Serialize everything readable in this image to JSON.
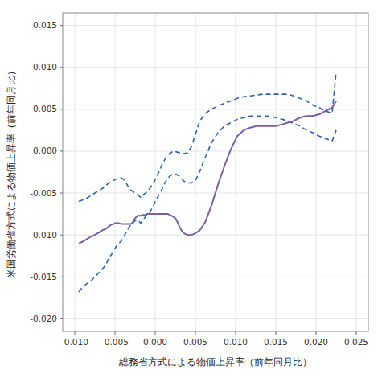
{
  "chart_data": {
    "type": "line",
    "xlabel": "総務省方式による物価上昇率（前年同月比）",
    "ylabel": "米国労働省方式による物価上昇率（前年同月比）",
    "xlim": [
      -0.0115,
      0.0265
    ],
    "ylim": [
      -0.0215,
      0.0165
    ],
    "xticks": [
      {
        "value": -0.01,
        "label": "-0.010"
      },
      -0.005,
      {
        "value": 0.0,
        "label": "0.000"
      },
      0.005,
      {
        "value": 0.01,
        "label": "0.010"
      },
      0.015,
      {
        "value": 0.02,
        "label": "0.020"
      },
      0.025
    ],
    "yticks": [
      {
        "value": -0.02,
        "label": "-0.020"
      },
      -0.015,
      {
        "value": -0.01,
        "label": "-0.010"
      },
      -0.005,
      {
        "value": 0.0,
        "label": "0.000"
      },
      0.005,
      {
        "value": 0.01,
        "label": "0.010"
      },
      0.015
    ],
    "grid": true,
    "series": [
      {
        "color": "#2b62b8",
        "line_style": "dashed",
        "x": [
          -0.0095,
          -0.009,
          -0.0085,
          -0.008,
          -0.0075,
          -0.007,
          -0.0065,
          -0.006,
          -0.0058,
          -0.0055,
          -0.0052,
          -0.005,
          -0.0048,
          -0.0045,
          -0.0042,
          -0.004,
          -0.0038,
          -0.0035,
          -0.0032,
          -0.0028,
          -0.0025,
          -0.0022,
          -0.0018,
          -0.0015,
          -0.0012,
          -0.0008,
          -0.0005,
          -0.0002,
          0.0,
          0.0003,
          0.0006,
          0.0009,
          0.0012,
          0.0015,
          0.0018,
          0.0021,
          0.0024,
          0.0027,
          0.003,
          0.0033,
          0.0036,
          0.004,
          0.0045,
          0.005,
          0.0055,
          0.0062,
          0.007,
          0.0078,
          0.0086,
          0.0094,
          0.0102,
          0.011,
          0.0118,
          0.0126,
          0.0134,
          0.0142,
          0.015,
          0.0158,
          0.0165,
          0.0172,
          0.018,
          0.0188,
          0.0196,
          0.0204,
          0.0212,
          0.022,
          0.0225
        ],
        "values": [
          -0.006,
          -0.0058,
          -0.0056,
          -0.0053,
          -0.005,
          -0.0047,
          -0.0044,
          -0.004,
          -0.0038,
          -0.0036,
          -0.0035,
          -0.0034,
          -0.0033,
          -0.0032,
          -0.0032,
          -0.0033,
          -0.0035,
          -0.004,
          -0.0045,
          -0.0048,
          -0.005,
          -0.0052,
          -0.0055,
          -0.0052,
          -0.005,
          -0.0046,
          -0.0042,
          -0.0038,
          -0.0034,
          -0.0028,
          -0.0022,
          -0.0015,
          -0.001,
          -0.0006,
          -0.0003,
          -0.0001,
          0.0,
          -0.0001,
          -0.0002,
          -0.0003,
          -0.0003,
          -0.0002,
          0.0005,
          0.002,
          0.0035,
          0.0045,
          0.005,
          0.0054,
          0.0057,
          0.006,
          0.0063,
          0.0065,
          0.0066,
          0.0067,
          0.0068,
          0.0068,
          0.0068,
          0.0068,
          0.0068,
          0.0066,
          0.0063,
          0.006,
          0.0055,
          0.0052,
          0.0048,
          0.0045,
          0.0095
        ]
      },
      {
        "color": "#2b62b8",
        "line_style": "dashed",
        "x": [
          -0.0095,
          -0.009,
          -0.0085,
          -0.008,
          -0.0075,
          -0.007,
          -0.0065,
          -0.006,
          -0.0058,
          -0.0055,
          -0.0052,
          -0.005,
          -0.0048,
          -0.0045,
          -0.0042,
          -0.004,
          -0.0038,
          -0.0035,
          -0.0032,
          -0.0028,
          -0.0025,
          -0.0022,
          -0.0018,
          -0.0015,
          -0.0012,
          -0.0008,
          -0.0005,
          -0.0002,
          0.0,
          0.0003,
          0.0006,
          0.0009,
          0.0012,
          0.0015,
          0.0018,
          0.0021,
          0.0024,
          0.0027,
          0.003,
          0.0033,
          0.0036,
          0.004,
          0.0045,
          0.005,
          0.0055,
          0.0062,
          0.007,
          0.0078,
          0.0086,
          0.0094,
          0.0102,
          0.011,
          0.0118,
          0.0126,
          0.0134,
          0.0142,
          0.015,
          0.0158,
          0.0165,
          0.0172,
          0.018,
          0.0188,
          0.0196,
          0.0204,
          0.0212,
          0.022,
          0.0225
        ],
        "values": [
          -0.0168,
          -0.0162,
          -0.0158,
          -0.0155,
          -0.015,
          -0.0145,
          -0.014,
          -0.0133,
          -0.0128,
          -0.0124,
          -0.012,
          -0.0116,
          -0.0113,
          -0.011,
          -0.0107,
          -0.0104,
          -0.01,
          -0.0095,
          -0.009,
          -0.0086,
          -0.0083,
          -0.0082,
          -0.0086,
          -0.0082,
          -0.0078,
          -0.0074,
          -0.007,
          -0.0065,
          -0.006,
          -0.0055,
          -0.005,
          -0.0044,
          -0.0038,
          -0.0033,
          -0.003,
          -0.0028,
          -0.0027,
          -0.0028,
          -0.003,
          -0.0033,
          -0.0036,
          -0.0038,
          -0.0038,
          -0.0035,
          -0.0025,
          -0.0008,
          0.001,
          0.0022,
          0.003,
          0.0034,
          0.0038,
          0.004,
          0.0042,
          0.0042,
          0.0042,
          0.0042,
          0.004,
          0.0038,
          0.0036,
          0.0033,
          0.003,
          0.0025,
          0.0022,
          0.0018,
          0.0015,
          0.0012,
          0.0025
        ]
      },
      {
        "color": "#7b5ea7",
        "line_style": "solid",
        "x": [
          -0.0095,
          -0.009,
          -0.0085,
          -0.008,
          -0.0075,
          -0.007,
          -0.0065,
          -0.006,
          -0.0058,
          -0.0055,
          -0.0052,
          -0.005,
          -0.0048,
          -0.0045,
          -0.0042,
          -0.004,
          -0.0038,
          -0.0036,
          -0.0033,
          -0.003,
          -0.0028,
          -0.0025,
          -0.0022,
          -0.002,
          -0.0018,
          -0.0015,
          -0.0012,
          -0.001,
          -0.0008,
          -0.0005,
          -0.0003,
          0.0,
          0.0002,
          0.0005,
          0.0008,
          0.001,
          0.0013,
          0.0016,
          0.0018,
          0.002,
          0.0022,
          0.0025,
          0.0028,
          0.003,
          0.0033,
          0.0036,
          0.004,
          0.0044,
          0.0048,
          0.0055,
          0.0062,
          0.007,
          0.0078,
          0.0086,
          0.0094,
          0.0102,
          0.011,
          0.0118,
          0.0126,
          0.0134,
          0.0142,
          0.015,
          0.0158,
          0.0165,
          0.0172,
          0.018,
          0.0188,
          0.0196,
          0.0204,
          0.0212,
          0.022,
          0.0225
        ],
        "values": [
          -0.011,
          -0.0108,
          -0.0105,
          -0.0102,
          -0.01,
          -0.0097,
          -0.0094,
          -0.0092,
          -0.009,
          -0.0088,
          -0.0087,
          -0.0086,
          -0.0086,
          -0.0086,
          -0.0087,
          -0.0087,
          -0.0087,
          -0.0087,
          -0.0087,
          -0.0087,
          -0.0085,
          -0.008,
          -0.0077,
          -0.0077,
          -0.0077,
          -0.0076,
          -0.0076,
          -0.0075,
          -0.0075,
          -0.0075,
          -0.0075,
          -0.0075,
          -0.0075,
          -0.0075,
          -0.0075,
          -0.0075,
          -0.0075,
          -0.0075,
          -0.0076,
          -0.0077,
          -0.0078,
          -0.008,
          -0.0085,
          -0.009,
          -0.0095,
          -0.0098,
          -0.01,
          -0.01,
          -0.0099,
          -0.0095,
          -0.0085,
          -0.0065,
          -0.004,
          -0.0018,
          0.0002,
          0.0018,
          0.0025,
          0.0028,
          0.003,
          0.003,
          0.003,
          0.003,
          0.0032,
          0.0034,
          0.0036,
          0.004,
          0.0042,
          0.0042,
          0.0044,
          0.0048,
          0.0052,
          0.006
        ]
      }
    ]
  }
}
